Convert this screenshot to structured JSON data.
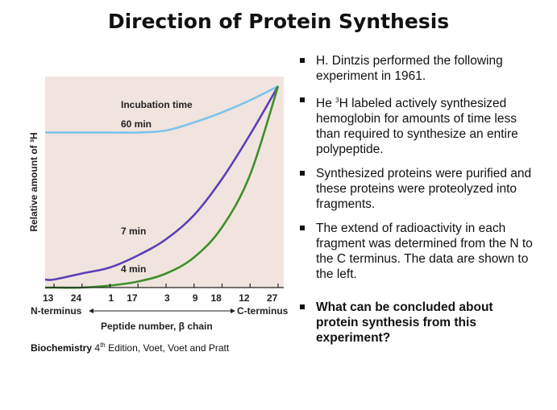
{
  "title": "Direction of Protein Synthesis",
  "bullets": [
    "H. Dintzis performed the following experiment in 1961.",
    {
      "pre": "He ",
      "sup": "3",
      "post": "H labeled actively synthesized hemoglobin for amounts of time less than required to synthesize an entire polypeptide."
    },
    "Synthesized proteins were purified and these proteins were proteolyzed into fragments.",
    "The extend of radioactivity in each fragment was determined from the N to the C terminus. The data are shown to the left.",
    "What can be concluded about protein synthesis from this experiment?"
  ],
  "citation": {
    "book": "Biochemistry",
    "edition_num": "4",
    "edition_sup": "th",
    "rest": "Edition, Voet, Voet and Pratt"
  },
  "chart_data": {
    "type": "line",
    "ylabel": "Relative amount of ³H",
    "xlabel": "Peptide number, β chain",
    "left_label": "N-terminus",
    "right_label": "C-terminus",
    "annotation_header": "Incubation time",
    "tick_labels": [
      "13",
      "24",
      "1",
      "17",
      "3",
      "9",
      "18",
      "12",
      "27"
    ],
    "x": [
      0,
      1,
      2,
      3,
      4,
      5,
      6,
      7,
      8
    ],
    "ylim": [
      0,
      1
    ],
    "series": [
      {
        "name": "60 min",
        "color": "#7cc3ec",
        "values": [
          0.77,
          0.77,
          0.77,
          0.77,
          0.78,
          0.82,
          0.87,
          0.93,
          1.0
        ]
      },
      {
        "name": "7 min",
        "color": "#5b3fb8",
        "values": [
          0.04,
          0.07,
          0.1,
          0.16,
          0.24,
          0.36,
          0.54,
          0.76,
          1.0
        ]
      },
      {
        "name": "4 min",
        "color": "#3d8f2c",
        "values": [
          0.0,
          0.0,
          0.01,
          0.03,
          0.07,
          0.15,
          0.3,
          0.56,
          1.0
        ]
      }
    ],
    "grid": false,
    "background": "#f1e4de"
  }
}
